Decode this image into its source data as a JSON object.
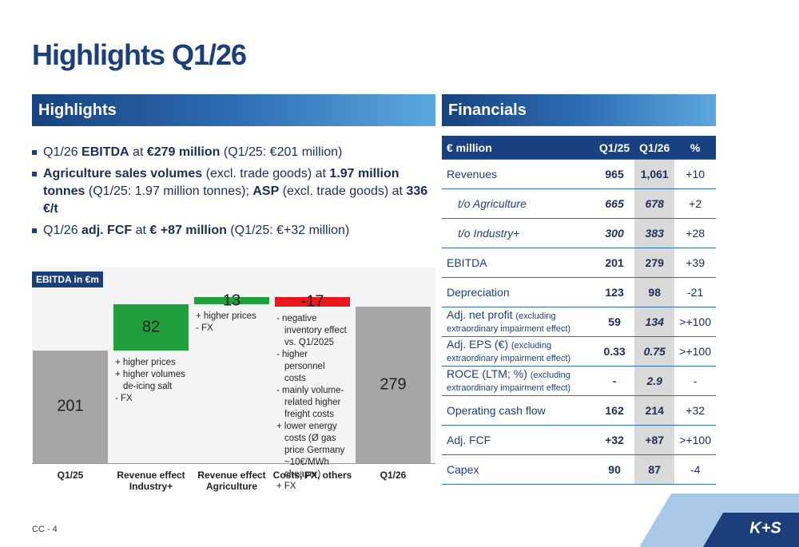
{
  "title": "Highlights Q1/26",
  "highlights": {
    "heading": "Highlights",
    "bullets": [
      [
        {
          "text": "Q1/26 "
        },
        {
          "text": "EBITDA",
          "bold": true
        },
        {
          "text": " at "
        },
        {
          "text": "€279 million",
          "bold": true
        },
        {
          "text": " (Q1/25: €201 million)"
        }
      ],
      [
        {
          "text": "Agriculture sales volumes",
          "bold": true
        },
        {
          "text": " (excl. trade goods) at "
        },
        {
          "text": "1.97 million tonnes",
          "bold": true
        },
        {
          "text": " (Q1/25: 1.97 million tonnes); "
        },
        {
          "text": "ASP",
          "bold": true
        },
        {
          "text": " (excl. trade goods) at "
        },
        {
          "text": "336 €/t",
          "bold": true
        }
      ],
      [
        {
          "text": "Q1/26 "
        },
        {
          "text": "adj. FCF",
          "bold": true
        },
        {
          "text": " at "
        },
        {
          "text": "€ +87 million",
          "bold": true
        },
        {
          "text": " (Q1/25: €+32 million)"
        }
      ]
    ]
  },
  "chart_data": {
    "type": "waterfall",
    "title": "EBITDA in €m",
    "categories": [
      "Q1/25",
      "Revenue effect Industry+",
      "Revenue effect Agriculture",
      "Costs, FX, others",
      "Q1/26"
    ],
    "values": [
      201,
      82,
      13,
      -17,
      279
    ],
    "kinds": [
      "total",
      "delta",
      "delta",
      "delta",
      "total"
    ],
    "colors": [
      "#a6a6a6",
      "#1fa03c",
      "#1fa03c",
      "#e8191e",
      "#a6a6a6"
    ],
    "annotations": [
      [],
      [
        "+ higher prices",
        "+ higher volumes de-icing salt",
        "- FX"
      ],
      [
        "+ higher prices",
        "- FX"
      ],
      [
        "- negative inventory effect vs. Q1/2025",
        "- higher personnel costs",
        "- mainly volume-related higher freight costs",
        "+ lower energy costs (Ø gas price Germany ~10€/MWh cheaper)",
        "+ FX"
      ],
      []
    ]
  },
  "financials": {
    "heading": "Financials",
    "header": [
      "€ million",
      "Q1/25",
      "Q1/26",
      "%"
    ],
    "rows": [
      {
        "label": "Revenues",
        "values": [
          "965",
          "1,061",
          "+10"
        ]
      },
      {
        "label": "t/o Agriculture",
        "italic": true,
        "values": [
          "665",
          "678",
          "+2"
        ]
      },
      {
        "label": "t/o Industry+",
        "italic": true,
        "values": [
          "300",
          "383",
          "+28"
        ]
      },
      {
        "label": "EBITDA",
        "values": [
          "201",
          "279",
          "+39"
        ]
      },
      {
        "label": "Depreciation",
        "values": [
          "123",
          "98",
          "-21"
        ]
      },
      {
        "label": "Adj. net profit",
        "note": "(excluding extraordinary impairment effect)",
        "italic_q126": true,
        "values": [
          "59",
          "134",
          ">+100"
        ]
      },
      {
        "label": "Adj. EPS (€)",
        "note": "(excluding extraordinary impairment effect)",
        "italic_q126": true,
        "values": [
          "0.33",
          "0.75",
          ">+100"
        ]
      },
      {
        "label": "ROCE (LTM; %)",
        "note": "(excluding extraordinary impairment effect)",
        "italic_q126": true,
        "values": [
          "-",
          "2.9",
          "-"
        ]
      },
      {
        "label": "Operating cash flow",
        "values": [
          "162",
          "214",
          "+32"
        ]
      },
      {
        "label": "Adj. FCF",
        "values": [
          "+32",
          "+87",
          ">+100"
        ]
      },
      {
        "label": "Capex",
        "values": [
          "90",
          "87",
          "-4"
        ]
      }
    ]
  },
  "footer": "CC - 4",
  "logo": "K+S"
}
